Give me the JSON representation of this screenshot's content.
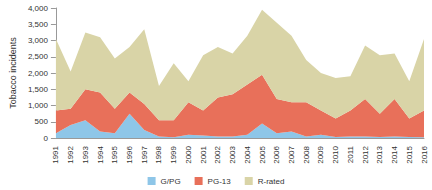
{
  "chart_data": {
    "type": "area",
    "stacked": true,
    "grid": false,
    "legend": "bottom",
    "y_label": "Tobacco incidents",
    "categories": [
      "1991",
      "1992",
      "1993",
      "1994",
      "1995",
      "1996",
      "1997",
      "1998",
      "1999",
      "2000",
      "2001",
      "2002",
      "2003",
      "2004",
      "2005",
      "2006",
      "2007",
      "2008",
      "2009",
      "2010",
      "2011",
      "2012",
      "2013",
      "2014",
      "2015",
      "2016"
    ],
    "series": [
      {
        "name": "G/PG",
        "color": "#8ec6e8",
        "values": [
          150,
          400,
          550,
          200,
          150,
          750,
          250,
          50,
          20,
          100,
          80,
          50,
          50,
          100,
          450,
          150,
          200,
          50,
          100,
          30,
          50,
          50,
          30,
          50,
          30,
          20
        ]
      },
      {
        "name": "PG-13",
        "color": "#e8705a",
        "values": [
          700,
          500,
          950,
          1200,
          750,
          650,
          800,
          500,
          530,
          1000,
          770,
          1200,
          1300,
          1550,
          1500,
          1050,
          900,
          1050,
          750,
          570,
          800,
          1150,
          720,
          1150,
          570,
          830
        ]
      },
      {
        "name": "R-rated",
        "color": "#d9d4a7",
        "values": [
          2200,
          1150,
          1750,
          1700,
          1550,
          1400,
          2300,
          1050,
          1750,
          650,
          1700,
          1550,
          1250,
          1500,
          2000,
          2350,
          2050,
          1300,
          1150,
          1250,
          1050,
          1650,
          1800,
          1400,
          1150,
          2200
        ]
      }
    ],
    "ylim": [
      0,
      4000
    ],
    "yticks": [
      0,
      500,
      {
        "value": 1000,
        "label": "1,000"
      },
      {
        "value": 1500,
        "label": "1,500"
      },
      {
        "value": 2000,
        "label": "2,000"
      },
      {
        "value": 2500,
        "label": "2,500"
      },
      {
        "value": 3000,
        "label": "3,000"
      },
      {
        "value": 3500,
        "label": "3,500"
      },
      {
        "value": 4000,
        "label": "4,000"
      }
    ]
  }
}
